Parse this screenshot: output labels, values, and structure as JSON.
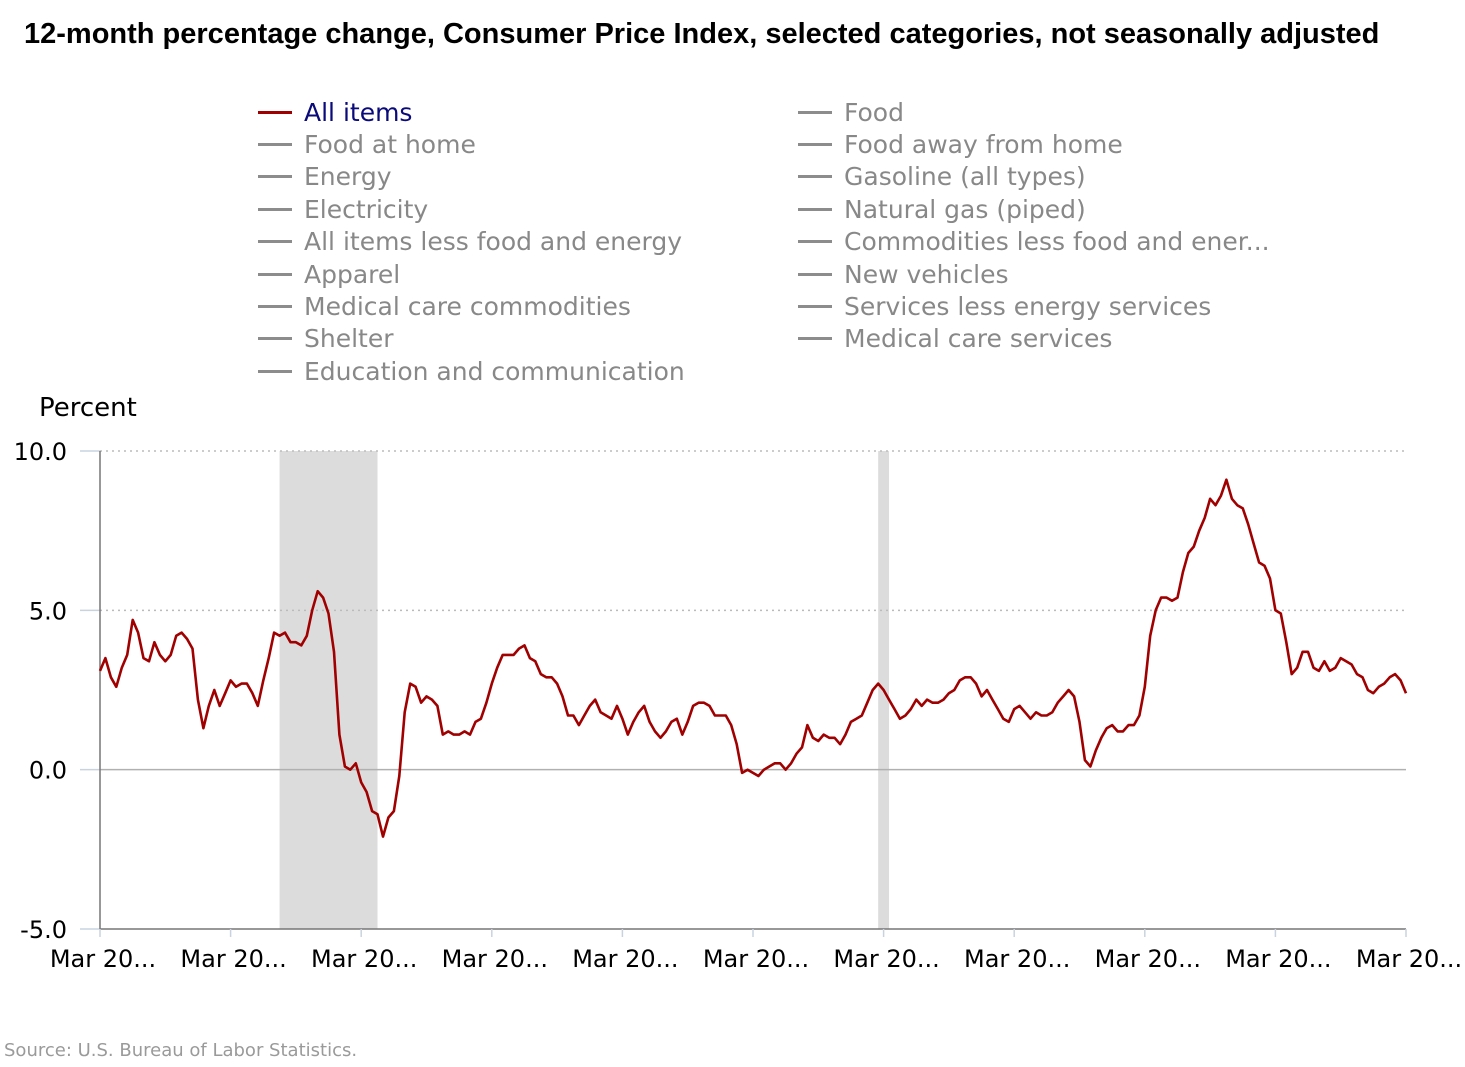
{
  "title": "12-month percentage change, Consumer Price Index, selected categories, not seasonally adjusted",
  "y_axis_title": "Percent",
  "source": "Source: U.S. Bureau of Labor Statistics.",
  "legend": {
    "col1": [
      "All items",
      "Food at home",
      "Energy",
      "Electricity",
      "All items less food and energy",
      "Apparel",
      "Medical care commodities",
      "Shelter",
      "Education and communication"
    ],
    "col2": [
      "Food",
      "Food away from home",
      "Gasoline (all types)",
      "Natural gas (piped)",
      "Commodities less food and ener...",
      "New vehicles",
      "Services less energy services",
      "Medical care services"
    ],
    "active": "All items"
  },
  "colors": {
    "active_series": "#a00000",
    "inactive_series": "#8c8c8c",
    "recession": "#dcdcdc",
    "grid": "#bbbbbb"
  },
  "chart_data": {
    "type": "line",
    "ylabel": "Percent",
    "ylim": [
      -5.0,
      10.0
    ],
    "y_ticks": [
      "10.0",
      "5.0",
      "0.0",
      "-5.0"
    ],
    "x_ticks": [
      "Mar 20...",
      "Mar 20...",
      "Mar 20...",
      "Mar 20...",
      "Mar 20...",
      "Mar 20...",
      "Mar 20...",
      "Mar 20...",
      "Mar 20...",
      "Mar 20...",
      "Mar 20..."
    ],
    "x_range_months": [
      0,
      240
    ],
    "recessions": [
      [
        33,
        51
      ],
      [
        143,
        145
      ]
    ],
    "grid": "dotted horizontal",
    "series": [
      {
        "name": "All items",
        "values": [
          3.1,
          3.5,
          2.9,
          2.6,
          3.2,
          3.6,
          4.7,
          4.3,
          3.5,
          3.4,
          4.0,
          3.6,
          3.4,
          3.6,
          4.2,
          4.3,
          4.1,
          3.8,
          2.2,
          1.3,
          2.0,
          2.5,
          2.0,
          2.4,
          2.8,
          2.6,
          2.7,
          2.7,
          2.4,
          2.0,
          2.8,
          3.5,
          4.3,
          4.2,
          4.3,
          4.0,
          4.0,
          3.9,
          4.2,
          5.0,
          5.6,
          5.4,
          4.9,
          3.7,
          1.1,
          0.1,
          0.0,
          0.2,
          -0.4,
          -0.7,
          -1.3,
          -1.4,
          -2.1,
          -1.5,
          -1.3,
          -0.2,
          1.8,
          2.7,
          2.6,
          2.1,
          2.3,
          2.2,
          2.0,
          1.1,
          1.2,
          1.1,
          1.1,
          1.2,
          1.1,
          1.5,
          1.6,
          2.1,
          2.7,
          3.2,
          3.6,
          3.6,
          3.6,
          3.8,
          3.9,
          3.5,
          3.4,
          3.0,
          2.9,
          2.9,
          2.7,
          2.3,
          1.7,
          1.7,
          1.4,
          1.7,
          2.0,
          2.2,
          1.8,
          1.7,
          1.6,
          2.0,
          1.6,
          1.1,
          1.5,
          1.8,
          2.0,
          1.5,
          1.2,
          1.0,
          1.2,
          1.5,
          1.6,
          1.1,
          1.5,
          2.0,
          2.1,
          2.1,
          2.0,
          1.7,
          1.7,
          1.7,
          1.4,
          0.8,
          -0.1,
          0.0,
          -0.1,
          -0.2,
          0.0,
          0.1,
          0.2,
          0.2,
          0.0,
          0.2,
          0.5,
          0.7,
          1.4,
          1.0,
          0.9,
          1.1,
          1.0,
          1.0,
          0.8,
          1.1,
          1.5,
          1.6,
          1.7,
          2.1,
          2.5,
          2.7,
          2.5,
          2.2,
          1.9,
          1.6,
          1.7,
          1.9,
          2.2,
          2.0,
          2.2,
          2.1,
          2.1,
          2.2,
          2.4,
          2.5,
          2.8,
          2.9,
          2.9,
          2.7,
          2.3,
          2.5,
          2.2,
          1.9,
          1.6,
          1.5,
          1.9,
          2.0,
          1.8,
          1.6,
          1.8,
          1.7,
          1.7,
          1.8,
          2.1,
          2.3,
          2.5,
          2.3,
          1.5,
          0.3,
          0.1,
          0.6,
          1.0,
          1.3,
          1.4,
          1.2,
          1.2,
          1.4,
          1.4,
          1.7,
          2.6,
          4.2,
          5.0,
          5.4,
          5.4,
          5.3,
          5.4,
          6.2,
          6.8,
          7.0,
          7.5,
          7.9,
          8.5,
          8.3,
          8.6,
          9.1,
          8.5,
          8.3,
          8.2,
          7.7,
          7.1,
          6.5,
          6.4,
          6.0,
          5.0,
          4.9,
          4.0,
          3.0,
          3.2,
          3.7,
          3.7,
          3.2,
          3.1,
          3.4,
          3.1,
          3.2,
          3.5,
          3.4,
          3.3,
          3.0,
          2.9,
          2.5,
          2.4,
          2.6,
          2.7,
          2.9,
          3.0,
          2.8,
          2.4
        ]
      }
    ]
  }
}
